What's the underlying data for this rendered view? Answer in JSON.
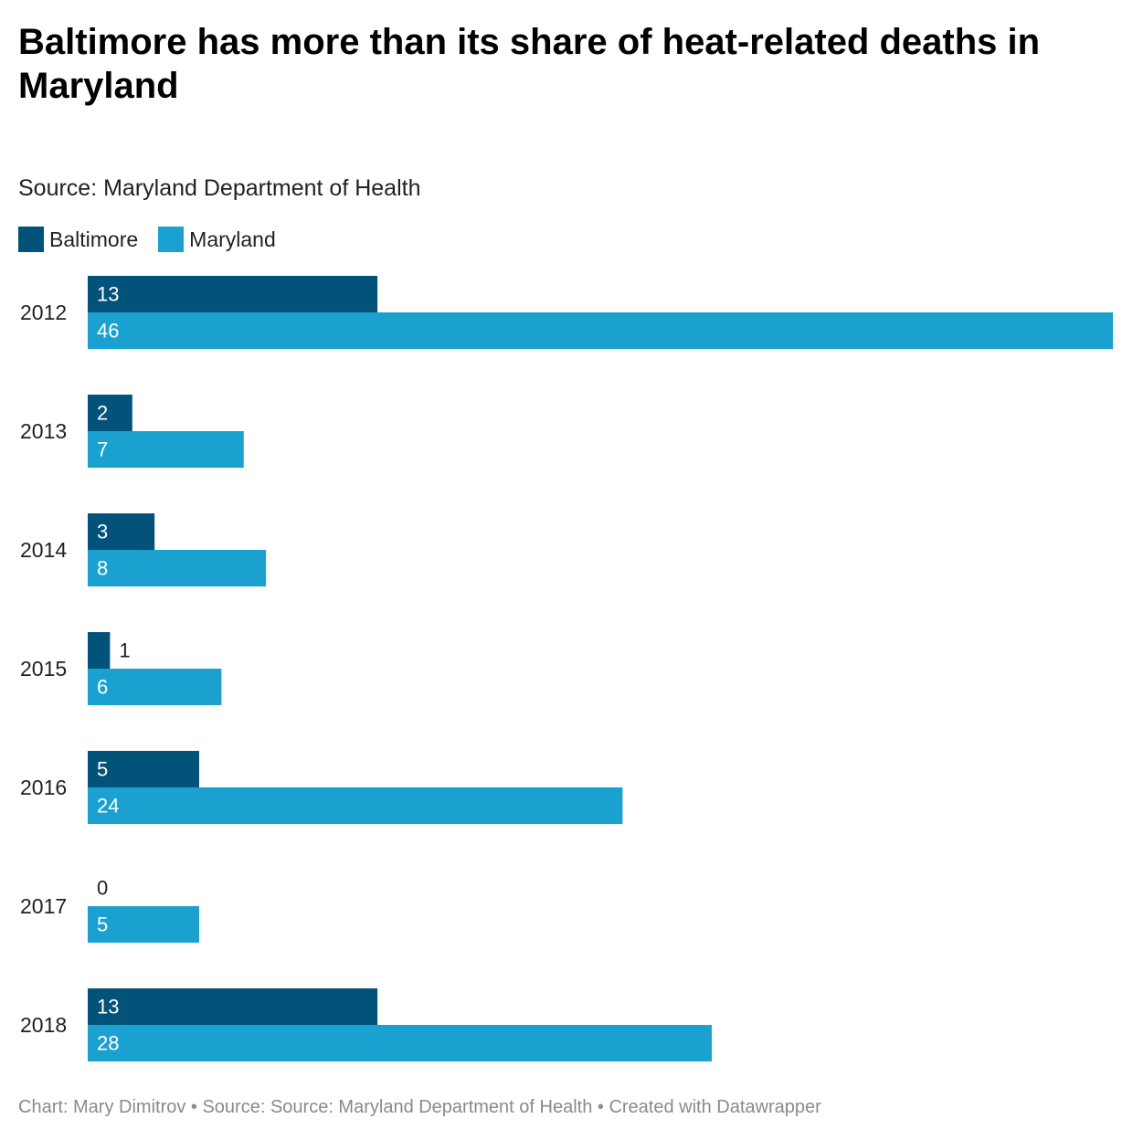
{
  "title": "Baltimore has more than its share of heat-related deaths in Maryland",
  "subtitle": "Source: Maryland Department of Health",
  "footer": "Chart: Mary Dimitrov • Source: Source: Maryland Department of Health • Created with Datawrapper",
  "colors": {
    "baltimore": "#02527a",
    "maryland": "#1aa1cf",
    "label_light": "#ffffff",
    "label_dark": "#222222"
  },
  "chart_data": {
    "type": "bar",
    "orientation": "horizontal",
    "categories": [
      "2012",
      "2013",
      "2014",
      "2015",
      "2016",
      "2017",
      "2018"
    ],
    "series": [
      {
        "name": "Baltimore",
        "values": [
          13,
          2,
          3,
          1,
          5,
          0,
          13
        ]
      },
      {
        "name": "Maryland",
        "values": [
          46,
          7,
          8,
          6,
          24,
          5,
          28
        ]
      }
    ],
    "xlim": [
      0,
      46
    ],
    "grid": false,
    "legend": "top-left",
    "data_labels": true
  }
}
